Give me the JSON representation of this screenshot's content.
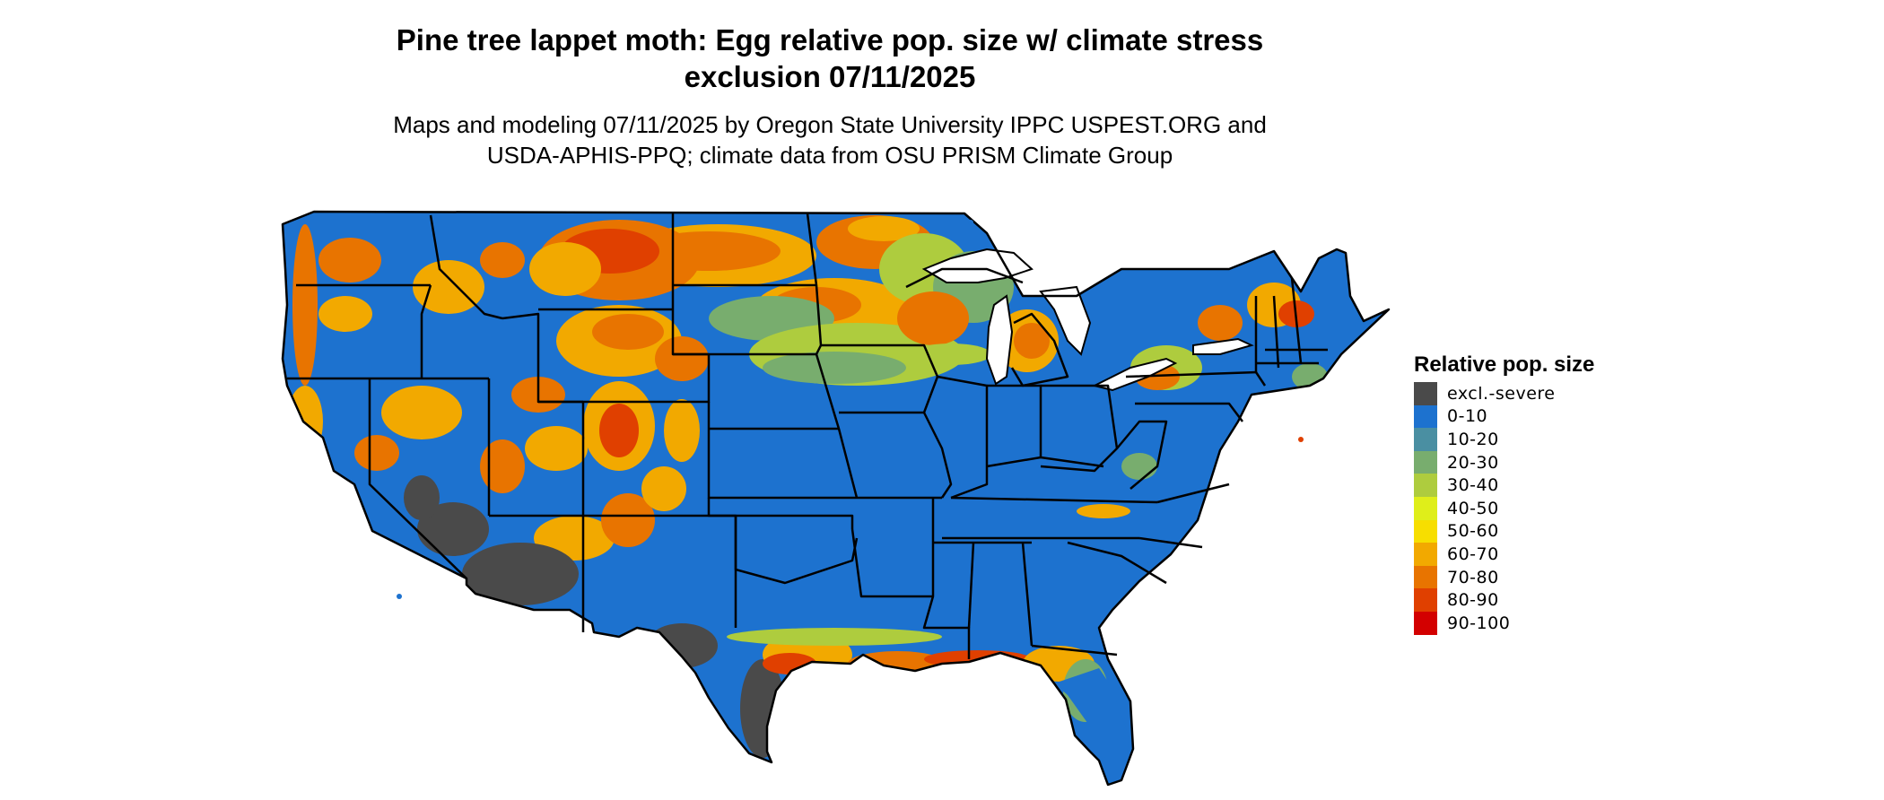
{
  "title_line1": "Pine tree lappet moth: Egg relative pop. size w/ climate stress",
  "title_line2": "exclusion 07/11/2025",
  "subtitle_line1": "Maps and modeling 07/11/2025 by Oregon State University IPPC USPEST.ORG and",
  "subtitle_line2": "USDA-APHIS-PPQ; climate data from OSU PRISM Climate Group",
  "legend": {
    "title": "Relative pop. size",
    "items": [
      {
        "label": "excl.-severe",
        "color": "#4a4a4a"
      },
      {
        "label": "0-10",
        "color": "#1d72cf"
      },
      {
        "label": "10-20",
        "color": "#4a8fa2"
      },
      {
        "label": "20-30",
        "color": "#78ad6e"
      },
      {
        "label": "30-40",
        "color": "#aecc3e"
      },
      {
        "label": "40-50",
        "color": "#dfee1a"
      },
      {
        "label": "50-60",
        "color": "#f7de00"
      },
      {
        "label": "60-70",
        "color": "#f2a900"
      },
      {
        "label": "70-80",
        "color": "#e87400"
      },
      {
        "label": "80-90",
        "color": "#e04000"
      },
      {
        "label": "90-100",
        "color": "#d30000"
      }
    ]
  },
  "map": {
    "base_color": "#1d72cf",
    "border_color": "#000000",
    "water_color": "#ffffff"
  }
}
